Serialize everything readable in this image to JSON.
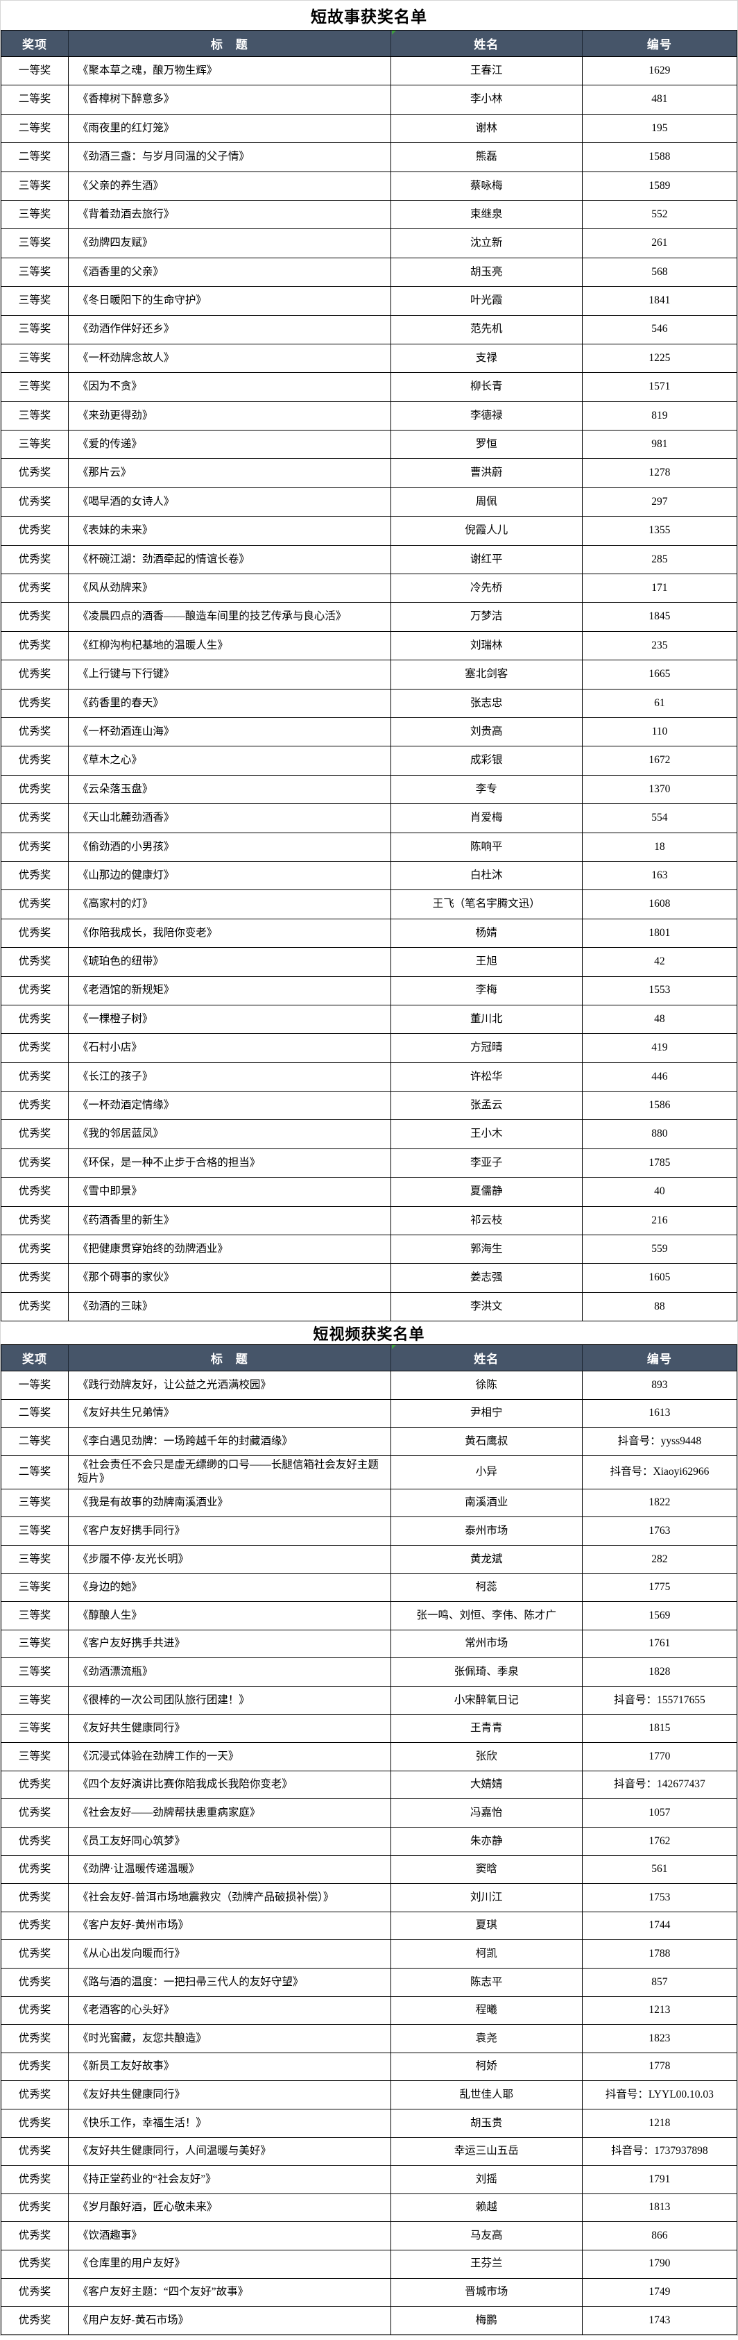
{
  "colors": {
    "header_bg": "#465569",
    "header_text": "#ffffff",
    "grid_border": "#000000",
    "flag_green": "#3f9e3f"
  },
  "tables": [
    {
      "title": "短故事获奖名单",
      "columns": [
        "奖项",
        "标　题",
        "姓名",
        "编号"
      ],
      "rows": [
        [
          "一等奖",
          "《聚本草之魂，酿万物生辉》",
          "王春江",
          "1629"
        ],
        [
          "二等奖",
          "《香樟树下醉意多》",
          "李小林",
          "481"
        ],
        [
          "二等奖",
          "《雨夜里的红灯笼》",
          "谢林",
          "195"
        ],
        [
          "二等奖",
          "《劲酒三盏：与岁月同温的父子情》",
          "熊磊",
          "1588"
        ],
        [
          "三等奖",
          "《父亲的养生酒》",
          "蔡咏梅",
          "1589"
        ],
        [
          "三等奖",
          "《背着劲酒去旅行》",
          "束继泉",
          "552"
        ],
        [
          "三等奖",
          "《劲牌四友赋》",
          "沈立新",
          "261"
        ],
        [
          "三等奖",
          "《酒香里的父亲》",
          "胡玉亮",
          "568"
        ],
        [
          "三等奖",
          "《冬日暖阳下的生命守护》",
          "叶光霞",
          "1841"
        ],
        [
          "三等奖",
          "《劲酒作伴好还乡》",
          "范先机",
          "546"
        ],
        [
          "三等奖",
          "《一杯劲牌念故人》",
          "支禄",
          "1225"
        ],
        [
          "三等奖",
          "《因为不贪》",
          "柳长青",
          "1571"
        ],
        [
          "三等奖",
          "《来劲更得劲》",
          "李德禄",
          "819"
        ],
        [
          "三等奖",
          "《爱的传递》",
          "罗恒",
          "981"
        ],
        [
          "优秀奖",
          "《那片云》",
          "曹洪蔚",
          "1278"
        ],
        [
          "优秀奖",
          "《喝早酒的女诗人》",
          "周佩",
          "297"
        ],
        [
          "优秀奖",
          "《表妹的未来》",
          "倪霞人儿",
          "1355"
        ],
        [
          "优秀奖",
          "《杯碗江湖：劲酒牵起的情谊长卷》",
          "谢红平",
          "285"
        ],
        [
          "优秀奖",
          "《风从劲牌来》",
          "冷先桥",
          "171"
        ],
        [
          "优秀奖",
          "《凌晨四点的酒香——酿造车间里的技艺传承与良心活》",
          "万梦洁",
          "1845"
        ],
        [
          "优秀奖",
          "《红柳沟枸杞基地的温暖人生》",
          "刘瑞林",
          "235"
        ],
        [
          "优秀奖",
          "《上行键与下行键》",
          "塞北剑客",
          "1665"
        ],
        [
          "优秀奖",
          "《药香里的春天》",
          "张志忠",
          "61"
        ],
        [
          "优秀奖",
          "《一杯劲酒连山海》",
          "刘贵高",
          "110"
        ],
        [
          "优秀奖",
          "《草木之心》",
          "成彩银",
          "1672"
        ],
        [
          "优秀奖",
          "《云朵落玉盘》",
          "李专",
          "1370"
        ],
        [
          "优秀奖",
          "《天山北麓劲酒香》",
          "肖爱梅",
          "554"
        ],
        [
          "优秀奖",
          "《偷劲酒的小男孩》",
          "陈响平",
          "18"
        ],
        [
          "优秀奖",
          "《山那边的健康灯》",
          "白杜沐",
          "163"
        ],
        [
          "优秀奖",
          "《高家村的灯》",
          "王飞（笔名宇腾文迅）",
          "1608"
        ],
        [
          "优秀奖",
          "《你陪我成长，我陪你变老》",
          "杨婧",
          "1801"
        ],
        [
          "优秀奖",
          "《琥珀色的纽带》",
          "王旭",
          "42"
        ],
        [
          "优秀奖",
          "《老酒馆的新规矩》",
          "李梅",
          "1553"
        ],
        [
          "优秀奖",
          "《一棵橙子树》",
          "董川北",
          "48"
        ],
        [
          "优秀奖",
          "《石村小店》",
          "方冠晴",
          "419"
        ],
        [
          "优秀奖",
          "《长江的孩子》",
          "许松华",
          "446"
        ],
        [
          "优秀奖",
          "《一杯劲酒定情缘》",
          "张孟云",
          "1586"
        ],
        [
          "优秀奖",
          "《我的邻居蓝凤》",
          "王小木",
          "880"
        ],
        [
          "优秀奖",
          "《环保，是一种不止步于合格的担当》",
          "李亚子",
          "1785"
        ],
        [
          "优秀奖",
          "《雪中即景》",
          "夏儒静",
          "40"
        ],
        [
          "优秀奖",
          "《药酒香里的新生》",
          "祁云枝",
          "216"
        ],
        [
          "优秀奖",
          "《把健康贯穿始终的劲牌酒业》",
          "郭海生",
          "559"
        ],
        [
          "优秀奖",
          "《那个碍事的家伙》",
          "姜志强",
          "1605"
        ],
        [
          "优秀奖",
          "《劲酒的三昧》",
          "李洪文",
          "88"
        ]
      ]
    },
    {
      "title": "短视频获奖名单",
      "columns": [
        "奖项",
        "标　题",
        "姓名",
        "编号"
      ],
      "rows": [
        [
          "一等奖",
          "《践行劲牌友好，让公益之光洒满校园》",
          "徐陈",
          "893"
        ],
        [
          "二等奖",
          "《友好共生兄弟情》",
          "尹相宁",
          "1613"
        ],
        [
          "二等奖",
          "《李白遇见劲牌：一场跨越千年的封藏酒缘》",
          "黄石鹰叔",
          "抖音号：yyss9448"
        ],
        [
          "二等奖",
          "《社会责任不会只是虚无缥缈的口号——长腿信箱社会友好主题短片》",
          "小异",
          "抖音号：Xiaoyi62966"
        ],
        [
          "三等奖",
          "《我是有故事的劲牌南溪酒业》",
          "南溪酒业",
          "1822"
        ],
        [
          "三等奖",
          "《客户友好携手同行》",
          "泰州市场",
          "1763"
        ],
        [
          "三等奖",
          "《步履不停·友光长明》",
          "黄龙斌",
          "282"
        ],
        [
          "三等奖",
          "《身边的她》",
          "柯蕊",
          "1775"
        ],
        [
          "三等奖",
          "《醇酿人生》",
          "张一鸣、刘恒、李伟、陈才广",
          "1569"
        ],
        [
          "三等奖",
          "《客户友好携手共进》",
          "常州市场",
          "1761"
        ],
        [
          "三等奖",
          "《劲酒漂流瓶》",
          "张佩琦、季泉",
          "1828"
        ],
        [
          "三等奖",
          "《很棒的一次公司团队旅行团建！》",
          "小宋醉氧日记",
          "抖音号：155717655"
        ],
        [
          "三等奖",
          "《友好共生健康同行》",
          "王青青",
          "1815"
        ],
        [
          "三等奖",
          "《沉浸式体验在劲牌工作的一天》",
          "张欣",
          "1770"
        ],
        [
          "优秀奖",
          "《四个友好演讲比赛你陪我成长我陪你变老》",
          "大婧婧",
          "抖音号：142677437"
        ],
        [
          "优秀奖",
          "《社会友好——劲牌帮扶患重病家庭》",
          "冯嘉怡",
          "1057"
        ],
        [
          "优秀奖",
          "《员工友好同心筑梦》",
          "朱亦静",
          "1762"
        ],
        [
          "优秀奖",
          "《劲牌·让温暖传递温暖》",
          "窦晗",
          "561"
        ],
        [
          "优秀奖",
          "《社会友好-普洱市场地震救灾（劲牌产品破损补偿）》",
          "刘川江",
          "1753"
        ],
        [
          "优秀奖",
          "《客户友好-黄州市场》",
          "夏琪",
          "1744"
        ],
        [
          "优秀奖",
          "《从心出发向暖而行》",
          "柯凯",
          "1788"
        ],
        [
          "优秀奖",
          "《路与酒的温度：一把扫帚三代人的友好守望》",
          "陈志平",
          "857"
        ],
        [
          "优秀奖",
          "《老酒客的心头好》",
          "程曦",
          "1213"
        ],
        [
          "优秀奖",
          "《时光窖藏，友您共酿造》",
          "袁尧",
          "1823"
        ],
        [
          "优秀奖",
          "《新员工友好故事》",
          "柯娇",
          "1778"
        ],
        [
          "优秀奖",
          "《友好共生健康同行》",
          "乱世佳人耶",
          "抖音号：LYYL00.10.03"
        ],
        [
          "优秀奖",
          "《快乐工作，幸福生活！》",
          "胡玉贵",
          "1218"
        ],
        [
          "优秀奖",
          "《友好共生健康同行，人间温暖与美好》",
          "幸运三山五岳",
          "抖音号：1737937898"
        ],
        [
          "优秀奖",
          "《持正堂药业的“社会友好”》",
          "刘摇",
          "1791"
        ],
        [
          "优秀奖",
          "《岁月酿好酒，匠心敬未来》",
          "赖越",
          "1813"
        ],
        [
          "优秀奖",
          "《饮酒趣事》",
          "马友高",
          "866"
        ],
        [
          "优秀奖",
          "《仓库里的用户友好》",
          "王芬兰",
          "1790"
        ],
        [
          "优秀奖",
          "《客户友好主题：“四个友好”故事》",
          "晋城市场",
          "1749"
        ],
        [
          "优秀奖",
          "《用户友好-黄石市场》",
          "梅鹏",
          "1743"
        ]
      ]
    }
  ]
}
